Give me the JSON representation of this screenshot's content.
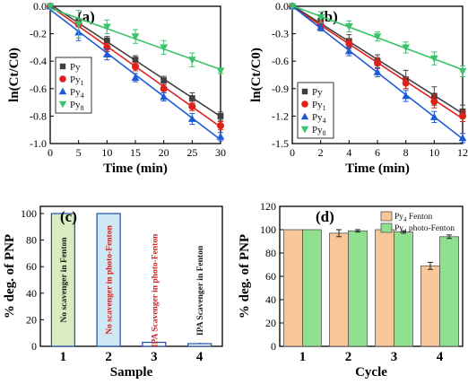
{
  "colors": {
    "Py": "#404040",
    "Py1": "#e0201b",
    "Py4": "#1f5bd6",
    "Py8": "#3cc26b",
    "bar_fenton": "#f7c79a",
    "bar_photo": "#90e090"
  },
  "chart_data": [
    {
      "panel": "(a)",
      "type": "line",
      "xlabel": "Time (min)",
      "ylabel": "ln(Ct/C0)",
      "xlim": [
        0,
        30
      ],
      "ylim": [
        -1.0,
        0.0
      ],
      "xticks": [
        "0",
        "5",
        "10",
        "15",
        "20",
        "25",
        "30"
      ],
      "yticks": [
        "0.0",
        "-0.2",
        "-0.4",
        "-0.6",
        "-0.8",
        "-1.0"
      ],
      "x": [
        0,
        5,
        10,
        15,
        20,
        25,
        30
      ],
      "legend_position": "bottom-left",
      "series": [
        {
          "name": "Py",
          "key": "Py",
          "marker": "square",
          "values": [
            0,
            -0.11,
            -0.25,
            -0.39,
            -0.54,
            -0.67,
            -0.8
          ],
          "err": [
            0,
            0.02,
            0.03,
            0.03,
            0.03,
            0.04,
            0.03
          ]
        },
        {
          "name": "Py1",
          "key": "Py1",
          "marker": "circle",
          "values": [
            0,
            -0.13,
            -0.3,
            -0.44,
            -0.6,
            -0.73,
            -0.87
          ],
          "err": [
            0,
            0.02,
            0.03,
            0.03,
            0.03,
            0.03,
            0.03
          ]
        },
        {
          "name": "Py4",
          "key": "Py4",
          "marker": "triangle-up",
          "values": [
            0,
            -0.19,
            -0.35,
            -0.52,
            -0.66,
            -0.82,
            -0.95
          ],
          "err": [
            0,
            0.06,
            0.04,
            0.03,
            0.03,
            0.04,
            0.03
          ]
        },
        {
          "name": "Py8",
          "key": "Py8",
          "marker": "triangle-down",
          "values": [
            0,
            -0.13,
            -0.15,
            -0.22,
            -0.3,
            -0.39,
            -0.47
          ],
          "err": [
            0,
            0.1,
            0.05,
            0.05,
            0.05,
            0.05,
            0.02
          ]
        }
      ]
    },
    {
      "panel": "(b)",
      "type": "line",
      "xlabel": "Time (min)",
      "ylabel": "ln(Ct/C0)",
      "xlim": [
        0,
        12
      ],
      "ylim": [
        -1.5,
        0.0
      ],
      "xticks": [
        "0",
        "2",
        "4",
        "6",
        "8",
        "10",
        "12"
      ],
      "yticks": [
        "0.0",
        "-0.3",
        "-0.6",
        "-0.9",
        "-1.2",
        "-1.5"
      ],
      "x": [
        0,
        2,
        4,
        6,
        8,
        10,
        12
      ],
      "legend_position": "bottom-left",
      "series": [
        {
          "name": "Py",
          "key": "Py",
          "marker": "square",
          "values": [
            0,
            -0.16,
            -0.38,
            -0.6,
            -0.8,
            -0.98,
            -1.15
          ],
          "err": [
            0,
            0.06,
            0.07,
            0.07,
            0.1,
            0.1,
            0.07
          ]
        },
        {
          "name": "Py1",
          "key": "Py1",
          "marker": "circle",
          "values": [
            0,
            -0.2,
            -0.41,
            -0.62,
            -0.84,
            -1.04,
            -1.2
          ],
          "err": [
            0,
            0.04,
            0.05,
            0.06,
            0.06,
            0.07,
            0.06
          ]
        },
        {
          "name": "Py4",
          "key": "Py4",
          "marker": "triangle-up",
          "values": [
            0,
            -0.23,
            -0.49,
            -0.72,
            -0.98,
            -1.21,
            -1.44
          ],
          "err": [
            0,
            0.04,
            0.05,
            0.05,
            0.06,
            0.06,
            0.05
          ]
        },
        {
          "name": "Py8",
          "key": "Py8",
          "marker": "triangle-down",
          "values": [
            0,
            -0.12,
            -0.22,
            -0.33,
            -0.45,
            -0.57,
            -0.71
          ],
          "err": [
            0,
            0.06,
            0.06,
            0.05,
            0.06,
            0.07,
            0.06
          ]
        }
      ]
    },
    {
      "panel": "(c)",
      "type": "bar",
      "xlabel": "Sample",
      "ylabel": "% deg. of PNP",
      "ylim": [
        0,
        100
      ],
      "yticks": [
        "0",
        "20",
        "40",
        "60",
        "80",
        "100"
      ],
      "categories": [
        "1",
        "2",
        "3",
        "4"
      ],
      "values": [
        100,
        100,
        3,
        2
      ],
      "bar_labels": [
        "No scavenger in Fenton",
        "No scavenger in photo-Fenton",
        "IPA Scavenger in photo-Fenton",
        "IPA Scavenger in Fenton"
      ],
      "bar_fills": [
        "#d8ecc0",
        "#cfe8f4",
        "#ffffff",
        "#ffffff"
      ],
      "label_colors": [
        "#1a1a1a",
        "#d02020",
        "#d02020",
        "#1a1a1a"
      ]
    },
    {
      "panel": "(d)",
      "type": "bar",
      "xlabel": "Cycle",
      "ylabel": "% deg. of PNP",
      "ylim": [
        0,
        120
      ],
      "yticks": [
        "0",
        "20",
        "40",
        "60",
        "80",
        "100",
        "120"
      ],
      "categories": [
        "1",
        "2",
        "3",
        "4"
      ],
      "legend_position": "top-right",
      "series": [
        {
          "name": "Py4 Fenton",
          "base": "Py",
          "sub": "4",
          "suffix": " Fenton",
          "color_key": "bar_fenton",
          "values": [
            100,
            97,
            100,
            69
          ],
          "err": [
            0,
            3,
            1,
            3
          ]
        },
        {
          "name": "Py4 photo-Fenton",
          "base": "Py",
          "sub": "4",
          "suffix": " photo-Fenton",
          "color_key": "bar_photo",
          "values": [
            100,
            99,
            98,
            94
          ],
          "err": [
            0,
            1,
            1,
            1.5
          ]
        }
      ]
    }
  ]
}
